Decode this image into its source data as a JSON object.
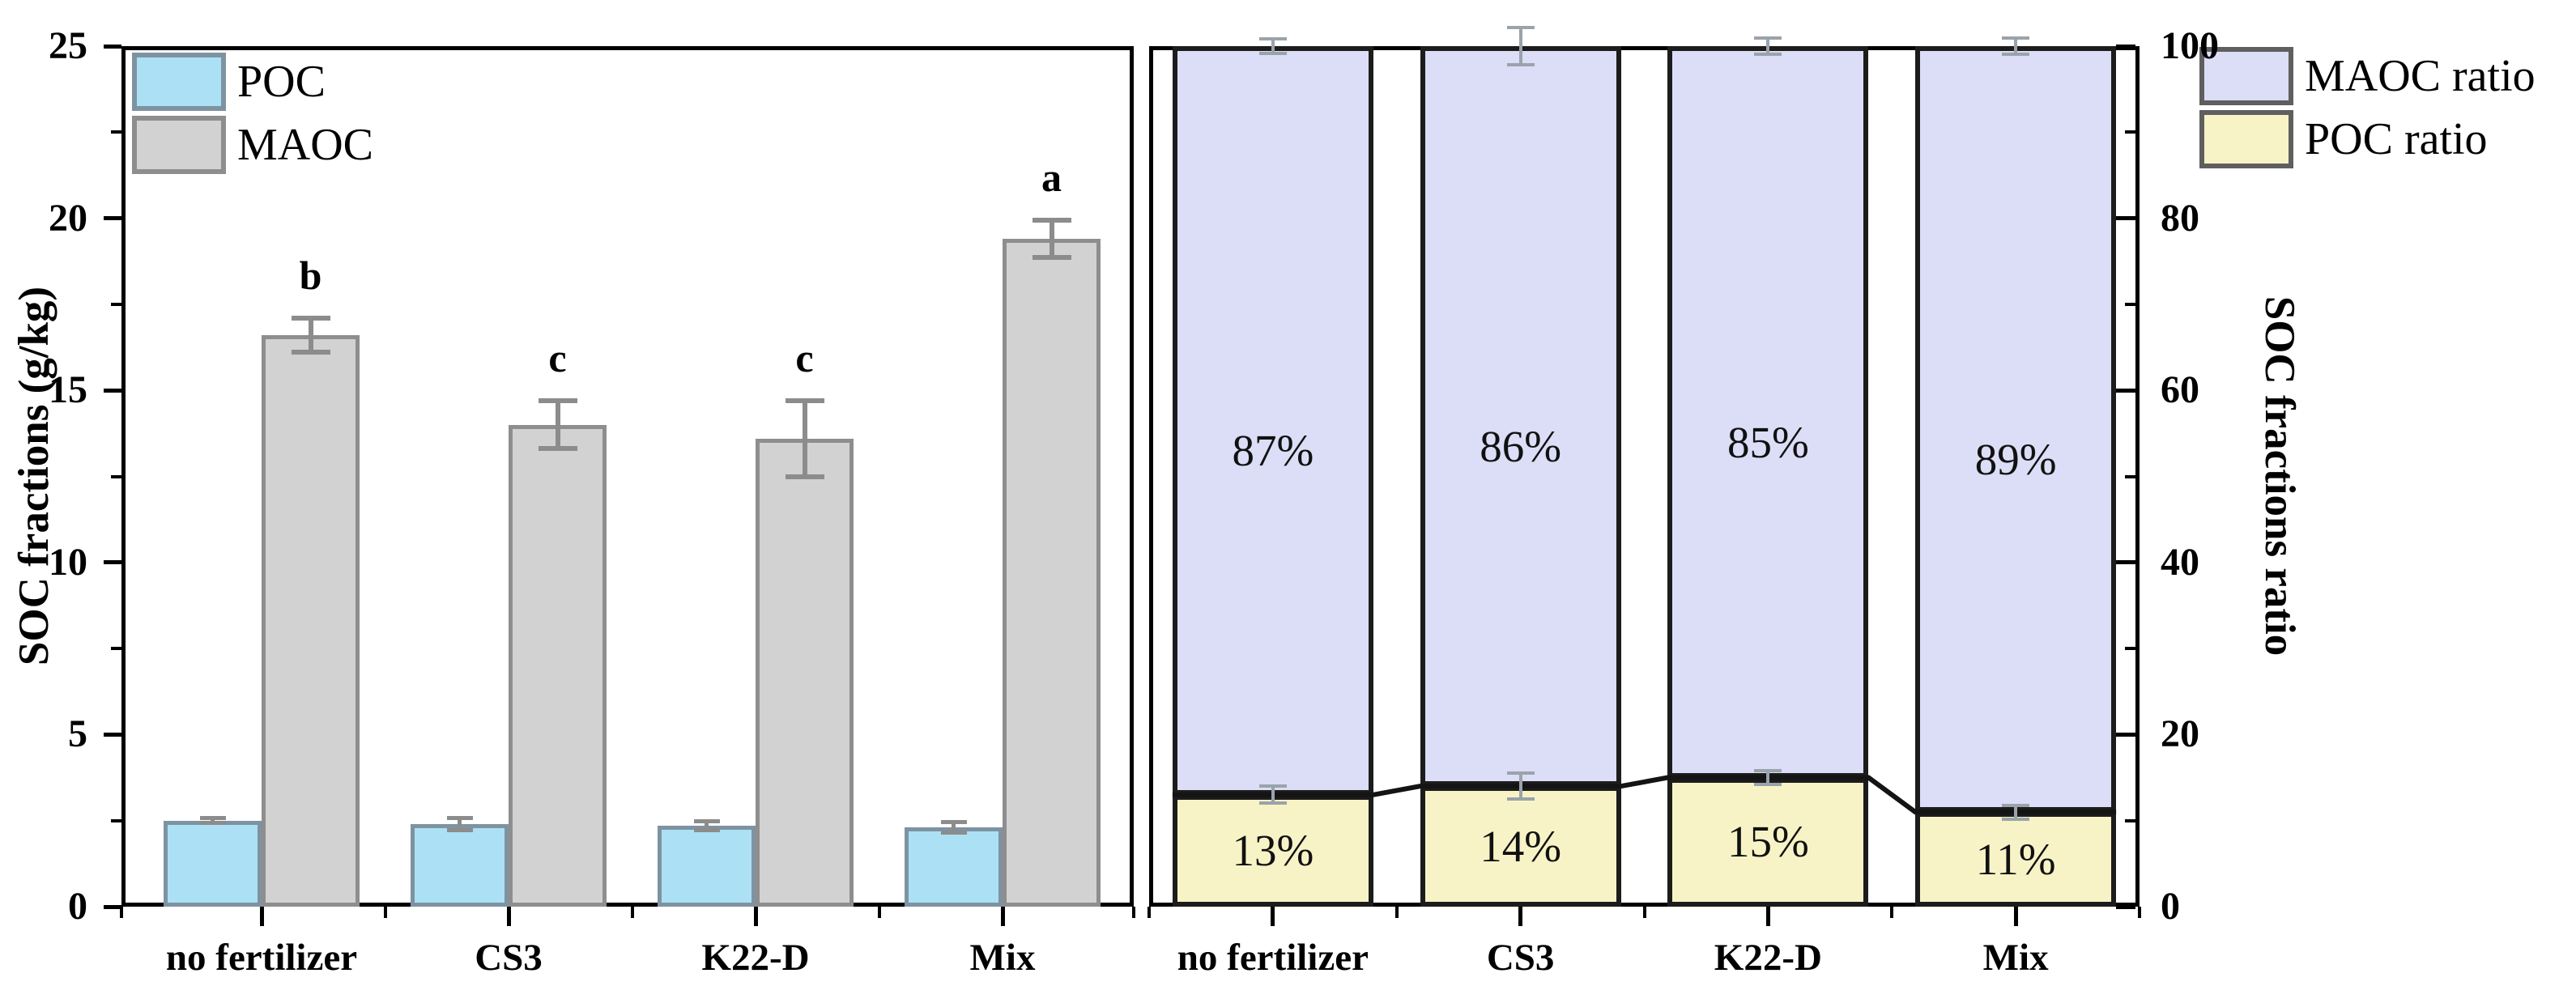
{
  "figure": {
    "background": "#ffffff",
    "description_texts": {
      "left_ylabel": "SOC fractions (g/kg)",
      "right_ylabel": "SOC fractions ratio"
    }
  },
  "colors": {
    "axis": "#000000",
    "poc_fill": "#ace0f4",
    "poc_border": "#7e93a2",
    "maoc_fill": "#d2d2d2",
    "maoc_border": "#8e8e8e",
    "maoc_ratio_fill": "#dcddf6",
    "poc_ratio_fill": "#f7f3c6",
    "ratio_bar_border": "#1c1c1c",
    "errorbar_left": "#8c8c8c",
    "errorbar_right": "#9aa3ab",
    "connector_line": "#141414"
  },
  "chart_data": [
    {
      "type": "bar",
      "title": "",
      "categories": [
        "no fertilizer",
        "CS3",
        "K22-D",
        "Mix"
      ],
      "xlabel": "",
      "ylabel": "SOC fractions (g/kg)",
      "ylim": [
        0,
        25
      ],
      "yticks_major": [
        0,
        5,
        10,
        15,
        20,
        25
      ],
      "yticks_minor": [
        2.5,
        7.5,
        12.5,
        17.5,
        22.5
      ],
      "grid": "off",
      "legend_position": "top-left-inside",
      "series": [
        {
          "name": "POC",
          "values": [
            2.5,
            2.4,
            2.35,
            2.3
          ],
          "errors": [
            0.07,
            0.18,
            0.12,
            0.15
          ]
        },
        {
          "name": "MAOC",
          "values": [
            16.6,
            14.0,
            13.6,
            19.4
          ],
          "errors": [
            0.5,
            0.7,
            1.1,
            0.55
          ]
        }
      ],
      "significance_letters": [
        "b",
        "c",
        "c",
        "a"
      ]
    },
    {
      "type": "bar",
      "subtype": "stacked-100",
      "title": "",
      "categories": [
        "no fertilizer",
        "CS3",
        "K22-D",
        "Mix"
      ],
      "xlabel": "",
      "ylabel": "SOC fractions ratio",
      "ylim": [
        0,
        100
      ],
      "yticks_major": [
        0,
        20,
        40,
        60,
        80,
        100
      ],
      "yticks_minor": [
        10,
        30,
        50,
        70,
        90
      ],
      "grid": "off",
      "legend_position": "top-right-outside",
      "y_axis_side": "right",
      "series": [
        {
          "name": "POC ratio",
          "values": [
            13,
            14,
            15,
            11
          ],
          "labels": [
            "13%",
            "14%",
            "15%",
            "11%"
          ],
          "boundary_errors": [
            1.0,
            1.5,
            0.8,
            0.8
          ]
        },
        {
          "name": "MAOC ratio",
          "values": [
            87,
            86,
            85,
            89
          ],
          "labels": [
            "87%",
            "86%",
            "85%",
            "89%"
          ],
          "top_errors": [
            0.8,
            2.2,
            0.9,
            0.9
          ]
        }
      ],
      "connector_line_through_gaps": true
    }
  ]
}
